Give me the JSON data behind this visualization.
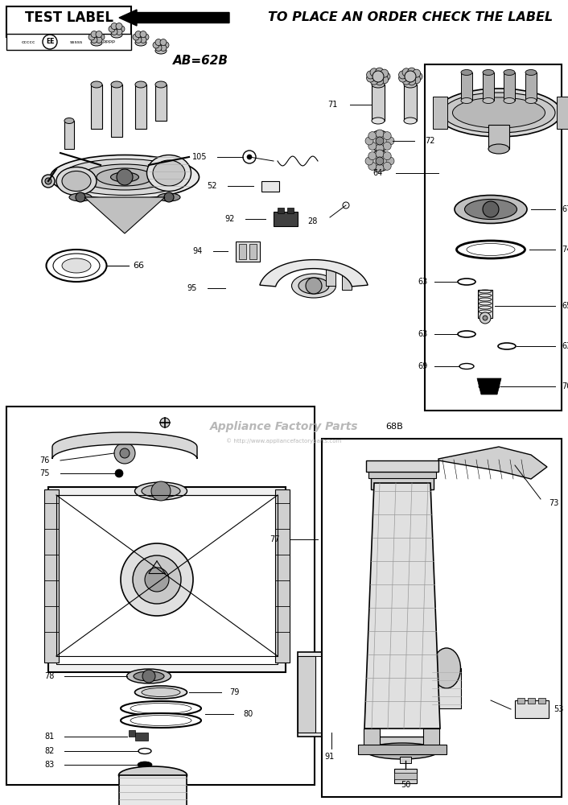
{
  "bg_color": "#ffffff",
  "header_text": "TO PLACE AN ORDER CHECK THE LABEL",
  "header_label_box": "TEST LABEL",
  "model_code": "AB=62B",
  "watermark": "Appliance Factory Parts",
  "watermark_url": "© http://www.appliancefactoryparts.com",
  "figsize": [
    7.06,
    10.0
  ],
  "dpi": 100
}
